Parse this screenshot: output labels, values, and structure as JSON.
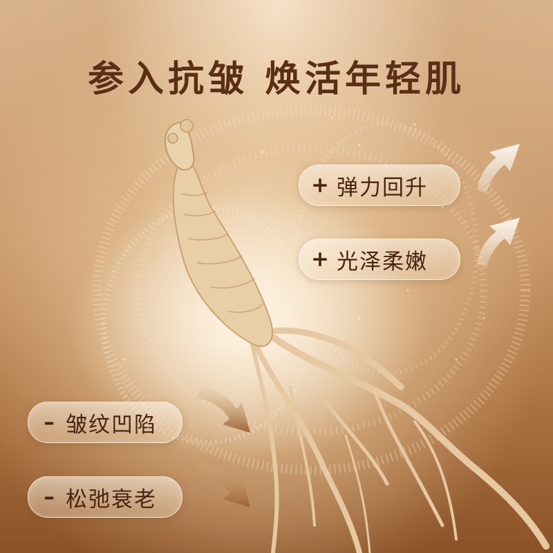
{
  "headline": "参入抗皱 焕活年轻肌",
  "benefits_up": [
    {
      "sign": "+",
      "label": "弹力回升"
    },
    {
      "sign": "+",
      "label": "光泽柔嫩"
    }
  ],
  "problems_down": [
    {
      "sign": "–",
      "label": "皱纹凹陷"
    },
    {
      "sign": "–",
      "label": "松弛衰老"
    }
  ],
  "colors": {
    "headline": "#5a2f16",
    "pill_text": "#4a2412",
    "background_light": "#f0dcc2",
    "background_dark": "#8a5227"
  },
  "icons": [
    "ginseng-root-illustration",
    "arrow-up-icon",
    "arrow-down-icon",
    "golden-swirl-decoration"
  ]
}
